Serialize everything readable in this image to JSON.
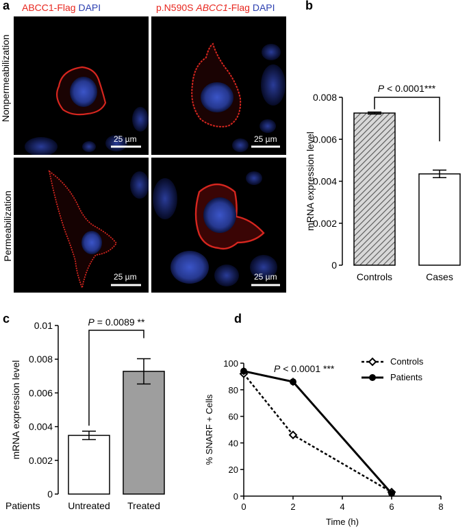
{
  "panel_a": {
    "letter": "a",
    "col1_header": {
      "part1": "ABCC1-Flag",
      "part2": "DAPI"
    },
    "col2_header": {
      "part1": "p.N590S ",
      "part2": "ABCC1",
      "part3": "-Flag",
      "part4": "DAPI"
    },
    "row1_label": "Nonpermeabilization",
    "row2_label": "Permeabilization",
    "scale_bar": "25 µm"
  },
  "panel_b": {
    "letter": "b",
    "chart_data": {
      "type": "bar",
      "categories": [
        "Controls",
        "Cases"
      ],
      "values": [
        0.00725,
        0.00435
      ],
      "errors": [
        5e-05,
        0.00018
      ],
      "ylabel": "mRNA expression level",
      "ylim": [
        0,
        0.008
      ],
      "yticks": [
        "0",
        "0.002",
        "0.004",
        "0.006",
        "0.008"
      ],
      "annotation": {
        "p_label": "P",
        "p_rest": " < 0.0001***"
      },
      "bar_fills": [
        "hatched",
        "#ffffff"
      ]
    }
  },
  "panel_c": {
    "letter": "c",
    "chart_data": {
      "type": "bar",
      "categories": [
        "Untreated",
        "Treated"
      ],
      "values": [
        0.00348,
        0.00728
      ],
      "errors": [
        0.00025,
        0.00075
      ],
      "ylabel": "mRNA expression level",
      "ylim": [
        0,
        0.01
      ],
      "yticks": [
        "0",
        "0.002",
        "0.004",
        "0.006",
        "0.008",
        "0.01"
      ],
      "row_label": "Patients",
      "annotation": {
        "p_label": "P",
        "p_rest": " = 0.0089 **"
      },
      "bar_fills": [
        "#ffffff",
        "#9e9e9e"
      ]
    }
  },
  "panel_d": {
    "letter": "d",
    "chart_data": {
      "type": "line",
      "xlabel": "Time (h)",
      "ylabel": "% SNARF + Cells",
      "xlim": [
        0,
        8
      ],
      "ylim": [
        0,
        100
      ],
      "xticks": [
        "0",
        "2",
        "4",
        "6",
        "8"
      ],
      "yticks": [
        "0",
        "20",
        "40",
        "60",
        "80",
        "100"
      ],
      "annotation": {
        "p_label": "P",
        "p_rest": " < 0.0001 ***"
      },
      "legend_position": "top-right",
      "series": [
        {
          "name": "Controls",
          "x": [
            0,
            2,
            6
          ],
          "y": [
            92,
            46,
            3
          ],
          "err": [
            3,
            3,
            1
          ],
          "style": "dashed",
          "marker": "diamond"
        },
        {
          "name": "Patients",
          "x": [
            0,
            2,
            6
          ],
          "y": [
            94,
            86,
            2
          ],
          "err": [
            3,
            3,
            1
          ],
          "style": "solid",
          "marker": "circle"
        }
      ]
    }
  }
}
